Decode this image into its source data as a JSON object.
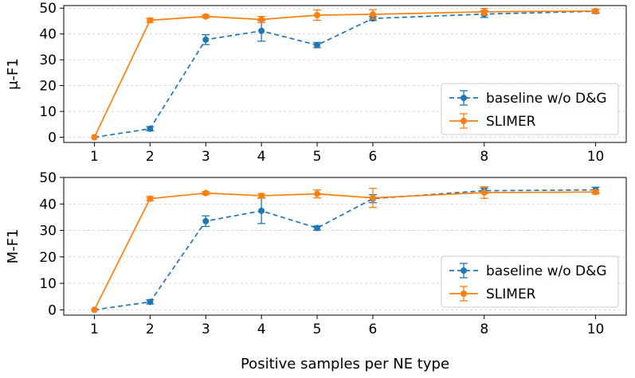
{
  "chart_data": {
    "xlabel": "Positive samples per NE type",
    "x_ticks": [
      1,
      2,
      3,
      4,
      5,
      6,
      8,
      10
    ],
    "xlim": [
      0.45,
      10.55
    ],
    "grid": "y",
    "colors": {
      "baseline": "#1f77b4",
      "slimer": "#ff7f0e"
    },
    "panels": [
      {
        "type": "line",
        "ylabel": "μ-F1",
        "ylim": [
          -2,
          51
        ],
        "y_ticks": [
          0,
          10,
          20,
          30,
          40,
          50
        ],
        "legend": "lower-right",
        "series": [
          {
            "name": "baseline w/o D&G",
            "style": "dashed",
            "color": "#1f77b4",
            "x": [
              1,
              2,
              3,
              4,
              5,
              6,
              8,
              10
            ],
            "y": [
              0,
              3.3,
              37.8,
              41.2,
              35.7,
              46.0,
              47.7,
              48.8
            ],
            "err": [
              0,
              0.8,
              1.9,
              4.0,
              1.0,
              0.8,
              1.3,
              0.8
            ]
          },
          {
            "name": "SLIMER",
            "style": "solid",
            "color": "#ff7f0e",
            "x": [
              1,
              2,
              3,
              4,
              5,
              6,
              8,
              10
            ],
            "y": [
              0,
              45.3,
              46.8,
              45.6,
              47.3,
              47.6,
              48.6,
              48.9
            ],
            "err": [
              0,
              0.8,
              0.6,
              1.2,
              2.0,
              1.8,
              1.3,
              0.6
            ]
          }
        ]
      },
      {
        "type": "line",
        "ylabel": "M-F1",
        "ylim": [
          -2,
          50
        ],
        "y_ticks": [
          0,
          10,
          20,
          30,
          40,
          50
        ],
        "legend": "lower-right",
        "series": [
          {
            "name": "baseline w/o D&G",
            "style": "dashed",
            "color": "#1f77b4",
            "x": [
              1,
              2,
              3,
              4,
              5,
              6,
              8,
              10
            ],
            "y": [
              0,
              3.0,
              33.5,
              37.4,
              30.9,
              42.0,
              45.0,
              45.3
            ],
            "err": [
              0,
              0.8,
              2.0,
              4.8,
              0.8,
              1.5,
              1.0,
              1.0
            ]
          },
          {
            "name": "SLIMER",
            "style": "solid",
            "color": "#ff7f0e",
            "x": [
              1,
              2,
              3,
              4,
              5,
              6,
              8,
              10
            ],
            "y": [
              0,
              42.0,
              44.1,
              43.1,
              43.8,
              42.3,
              44.3,
              44.5
            ],
            "err": [
              0,
              0.8,
              0.6,
              0.8,
              1.5,
              3.6,
              2.2,
              0.8
            ]
          }
        ]
      }
    ]
  }
}
